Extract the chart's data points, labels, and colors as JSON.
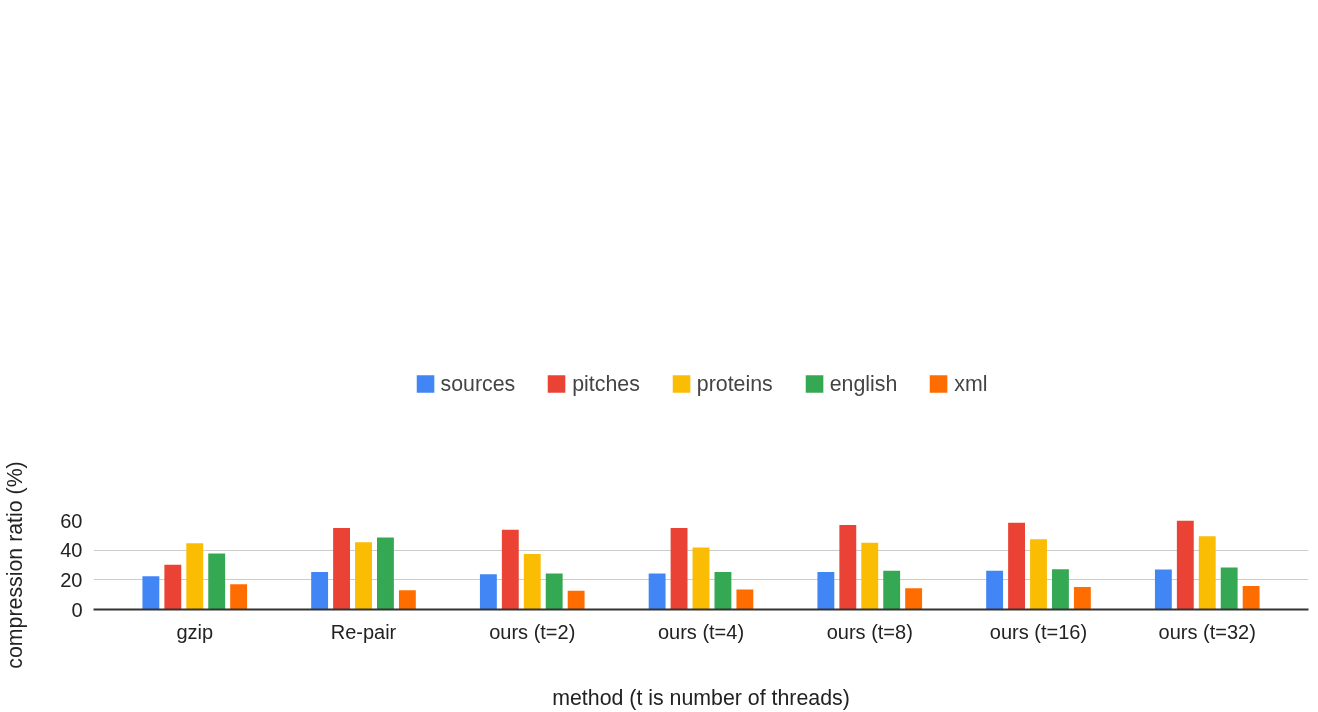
{
  "chart_data": {
    "type": "bar",
    "xlabel": "method (t is number of threads)",
    "ylabel": "compression ratio (%)",
    "categories": [
      "gzip",
      "Re-pair",
      "ours (t=2)",
      "ours (t=4)",
      "ours (t=8)",
      "ours (t=16)",
      "ours (t=32)"
    ],
    "series": [
      {
        "name": "sources",
        "color": "#4285f4",
        "values": [
          22.4,
          25.3,
          23.7,
          24.3,
          25.3,
          26.2,
          27.0
        ]
      },
      {
        "name": "pitches",
        "color": "#ea4335",
        "values": [
          30.1,
          55.0,
          53.7,
          55.0,
          56.9,
          58.5,
          60.0
        ]
      },
      {
        "name": "proteins",
        "color": "#fbbc04",
        "values": [
          44.7,
          45.3,
          37.5,
          41.8,
          45.0,
          47.4,
          49.3
        ]
      },
      {
        "name": "english",
        "color": "#34a853",
        "values": [
          37.7,
          48.5,
          24.3,
          25.3,
          26.2,
          27.2,
          28.3
        ]
      },
      {
        "name": "xml",
        "color": "#ff6d01",
        "values": [
          17.0,
          13.0,
          12.7,
          13.5,
          14.3,
          15.1,
          15.9
        ]
      }
    ],
    "ylim": [
      0,
      60
    ],
    "yticks": [
      0,
      20,
      40,
      60
    ],
    "grid": "y",
    "legend": "top"
  }
}
